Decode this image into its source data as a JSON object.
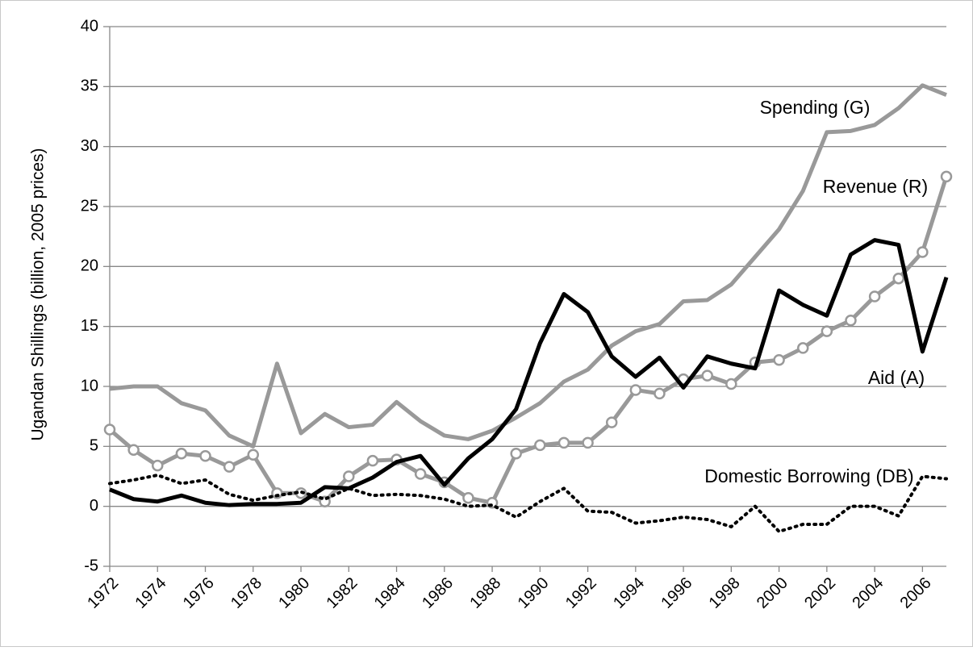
{
  "chart_data": {
    "type": "line",
    "y_label": "Ugandan Shillings (billion, 2005 prices)",
    "x": [
      1972,
      1973,
      1974,
      1975,
      1976,
      1977,
      1978,
      1979,
      1980,
      1981,
      1982,
      1983,
      1984,
      1985,
      1986,
      1987,
      1988,
      1989,
      1990,
      1991,
      1992,
      1993,
      1994,
      1995,
      1996,
      1997,
      1998,
      1999,
      2000,
      2001,
      2002,
      2003,
      2004,
      2005,
      2006,
      2007
    ],
    "xlim": [
      1972,
      2007
    ],
    "xticks": [
      1972,
      1974,
      1976,
      1978,
      1980,
      1982,
      1984,
      1986,
      1988,
      1990,
      1992,
      1994,
      1996,
      1998,
      2000,
      2002,
      2004,
      2006
    ],
    "ylim": [
      -5,
      40
    ],
    "yticks": [
      -5,
      0,
      5,
      10,
      15,
      20,
      25,
      30,
      35,
      40
    ],
    "grid": true,
    "series": [
      {
        "name": "Spending (G)",
        "color": "#999999",
        "style": "solid",
        "values": [
          9.8,
          10.0,
          10.0,
          8.6,
          8.0,
          5.9,
          5.0,
          11.9,
          6.1,
          7.7,
          6.6,
          6.8,
          8.7,
          7.1,
          5.9,
          5.6,
          6.3,
          7.4,
          8.6,
          10.4,
          11.4,
          13.4,
          14.6,
          15.2,
          17.1,
          17.2,
          18.5,
          20.8,
          23.1,
          26.3,
          31.2,
          31.3,
          31.8,
          33.2,
          35.1,
          34.3
        ]
      },
      {
        "name": "Revenue (R)",
        "color": "#999999",
        "style": "solid",
        "marker": "circle",
        "values": [
          6.4,
          4.7,
          3.4,
          4.4,
          4.2,
          3.3,
          4.3,
          1.1,
          1.1,
          0.4,
          2.5,
          3.8,
          3.9,
          2.7,
          2.0,
          0.7,
          0.3,
          4.4,
          5.1,
          5.3,
          5.3,
          7.0,
          9.7,
          9.4,
          10.6,
          10.9,
          10.2,
          12.0,
          12.2,
          13.2,
          14.6,
          15.5,
          17.5,
          19.0,
          21.2,
          27.5
        ]
      },
      {
        "name": "Aid (A)",
        "color": "#000000",
        "style": "solid",
        "values": [
          1.4,
          0.6,
          0.4,
          0.9,
          0.3,
          0.1,
          0.2,
          0.2,
          0.3,
          1.6,
          1.5,
          2.4,
          3.7,
          4.2,
          1.8,
          4.0,
          5.6,
          8.1,
          13.6,
          17.7,
          16.2,
          12.5,
          10.8,
          12.4,
          9.9,
          12.5,
          11.9,
          11.5,
          18.0,
          16.8,
          15.9,
          21.0,
          22.2,
          21.8,
          12.9,
          19.1
        ]
      },
      {
        "name": "Domestic Borrowing (DB)",
        "color": "#000000",
        "style": "dotted",
        "values": [
          1.9,
          2.2,
          2.6,
          1.9,
          2.2,
          1.0,
          0.5,
          0.9,
          1.2,
          0.6,
          1.5,
          0.9,
          1.0,
          0.9,
          0.6,
          0.0,
          0.1,
          -0.9,
          0.4,
          1.5,
          -0.4,
          -0.5,
          -1.4,
          -1.2,
          -0.9,
          -1.1,
          -1.7,
          0.0,
          -2.1,
          -1.5,
          -1.5,
          0.0,
          0.0,
          -0.8,
          2.5,
          2.3
        ]
      }
    ]
  }
}
